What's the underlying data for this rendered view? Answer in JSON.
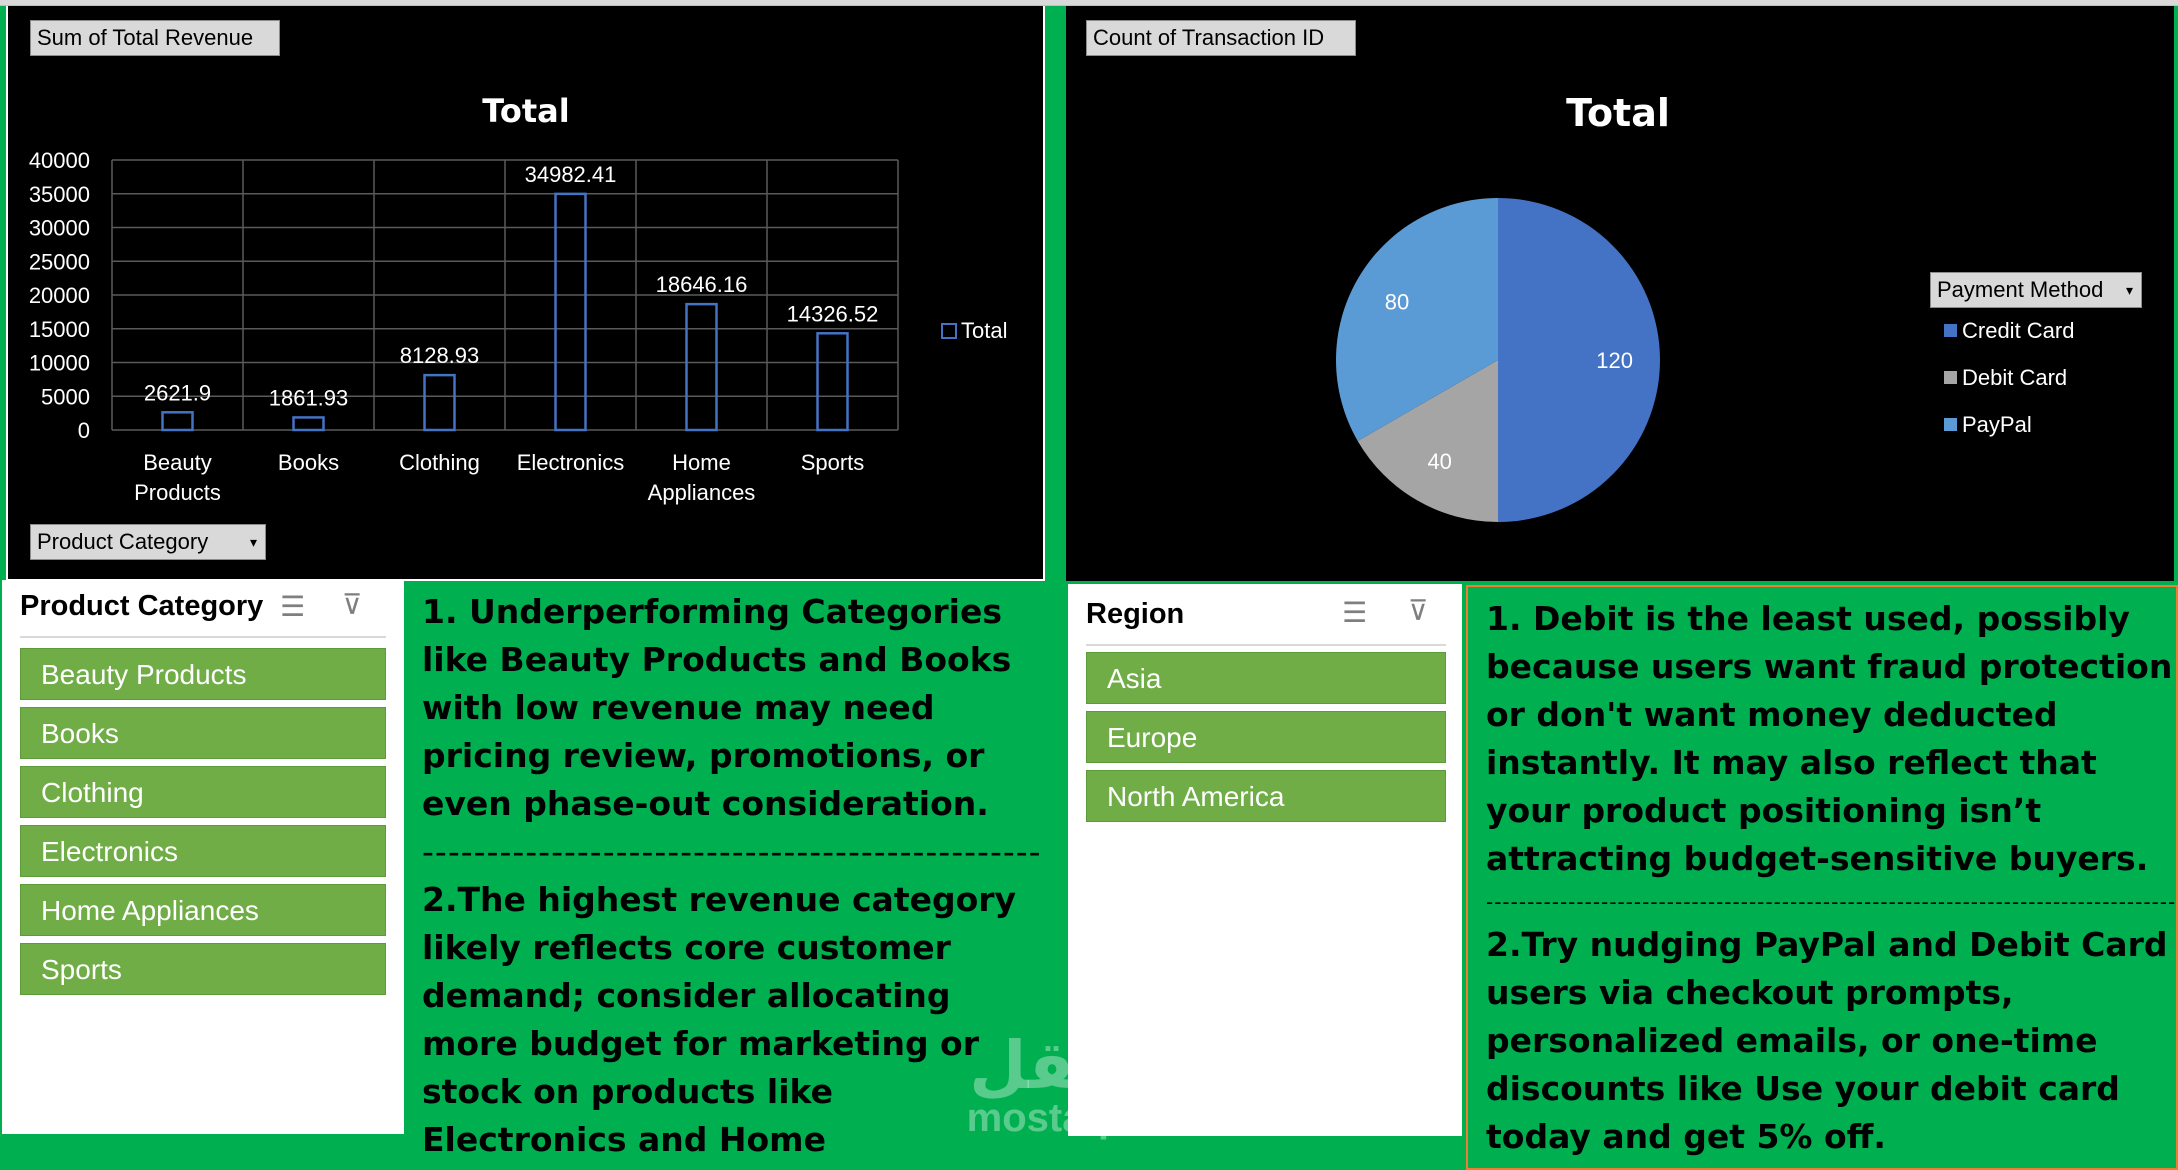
{
  "bar_chart": {
    "field_label": "Sum of Total Revenue",
    "axis_field_label": "Product Category",
    "chart_data": {
      "type": "bar",
      "title": "Total",
      "categories": [
        "Beauty Products",
        "Books",
        "Clothing",
        "Electronics",
        "Home Appliances",
        "Sports"
      ],
      "category_lines": [
        [
          "Beauty",
          "Products"
        ],
        [
          "Books"
        ],
        [
          "Clothing"
        ],
        [
          "Electronics"
        ],
        [
          "Home",
          "Appliances"
        ],
        [
          "Sports"
        ]
      ],
      "series": [
        {
          "name": "Total",
          "values": [
            2621.9,
            1861.93,
            8128.93,
            34982.41,
            18646.16,
            14326.52
          ]
        }
      ],
      "data_labels": [
        "2621.9",
        "1861.93",
        "8128.93",
        "34982.41",
        "18646.16",
        "14326.52"
      ],
      "ylim": [
        0,
        40000
      ],
      "yticks": [
        "40000",
        "35000",
        "30000",
        "25000",
        "20000",
        "15000",
        "10000",
        "5000",
        "0"
      ],
      "grid": true,
      "legend": "right",
      "bar_color": "#4472c4"
    }
  },
  "pie_chart": {
    "field_label": "Count of Transaction ID",
    "legend_field_label": "Payment Method",
    "chart_data": {
      "type": "pie",
      "title": "Total",
      "labels": [
        "Credit Card",
        "Debit Card",
        "PayPal"
      ],
      "values": [
        120,
        40,
        80
      ],
      "value_labels": [
        "120",
        "40",
        "80"
      ],
      "colors": [
        "#4472c4",
        "#a5a5a5",
        "#5b9bd5"
      ],
      "legend": "right"
    }
  },
  "slicer_category": {
    "title": "Product Category",
    "items": [
      "Beauty Products",
      "Books",
      "Clothing",
      "Electronics",
      "Home Appliances",
      "Sports"
    ]
  },
  "slicer_region": {
    "title": "Region",
    "items": [
      "Asia",
      "Europe",
      "North America"
    ]
  },
  "insight_left": {
    "point1": "1. Underperforming Categories like Beauty Products and Books with low revenue may need pricing review, promotions, or even phase-out consideration.",
    "divider": "----------------------------------------------------------",
    "point2": "2.The highest revenue category likely reflects core customer demand; consider allocating more budget for marketing or stock on products like Electronics and Home"
  },
  "insight_right": {
    "point1": "1. Debit is the least used, possibly because users want fraud protection or don't want money deducted instantly. It may also reflect that your product positioning isn’t attracting budget-sensitive buyers.",
    "divider": "------------------------------------------------------------------------------------------------------------------",
    "point2": "2.Try nudging PayPal and Debit Card users via checkout prompts, personalized emails, or one-time discounts like Use your debit card today and get 5% off."
  },
  "watermark": {
    "arabic": "مستقل",
    "latin": "mostaql.com"
  },
  "colors": {
    "background": "#00b050",
    "slicer_item": "#70ad47",
    "chart_bg": "#000000",
    "accent_border": "#ed7d31"
  },
  "icons": {
    "multiselect": "multi-select-icon",
    "clear_filter": "clear-filter-icon",
    "dropdown": "dropdown-arrow-icon"
  }
}
